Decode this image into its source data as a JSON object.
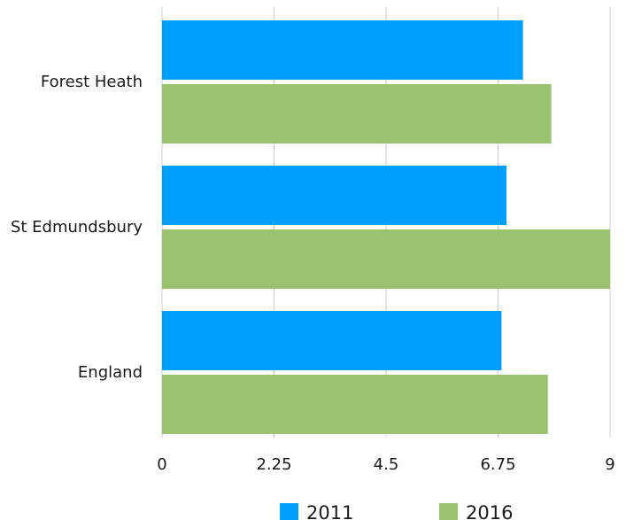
{
  "chart_data": {
    "type": "bar",
    "orientation": "horizontal",
    "categories": [
      "Forest Heath",
      "St Edmundsbury",
      "England"
    ],
    "series": [
      {
        "name": "2011",
        "values": [
          7.25,
          6.92,
          6.82
        ],
        "color": "#009ffe"
      },
      {
        "name": "2016",
        "values": [
          7.82,
          9.0,
          7.75
        ],
        "color": "#9bc36f"
      }
    ],
    "xlim": [
      0,
      9
    ],
    "xticks": [
      "0",
      "2.25",
      "4.5",
      "6.75",
      "9"
    ],
    "grid": "vertical",
    "legend_placement": "bottom"
  }
}
